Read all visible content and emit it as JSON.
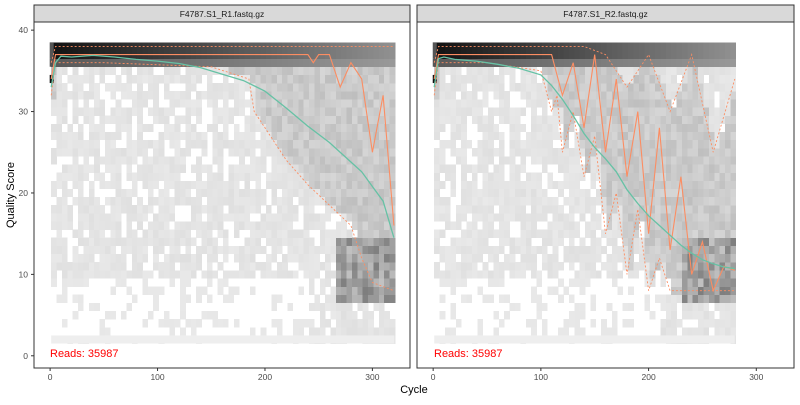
{
  "chart_data": {
    "type": "line",
    "title": "",
    "xlabel": "Cycle",
    "ylabel": "Quality Score",
    "xlim": [
      -15,
      335
    ],
    "ylim": [
      -1.5,
      41
    ],
    "xticks": [
      0,
      100,
      200,
      300
    ],
    "yticks": [
      0,
      10,
      20,
      30,
      40
    ],
    "grid": false,
    "legend": "none",
    "colors": {
      "strip_bg": "#d9d9d9",
      "panel_border": "#333333",
      "mean": "#66c2a5",
      "median": "#fc8d62",
      "quartiles": "#fc8d62",
      "reads_text": "#ff0000",
      "heat_low": "#f2f2f2",
      "heat_high": "#000000"
    },
    "panels": [
      {
        "strip_label": "F4787.S1_R1.fastq.gz",
        "reads_label": "Reads:  35987",
        "max_cycle": 320,
        "mean": {
          "x": [
            1,
            5,
            10,
            20,
            40,
            60,
            80,
            100,
            120,
            140,
            160,
            180,
            200,
            220,
            240,
            260,
            280,
            290,
            300,
            310,
            320
          ],
          "y": [
            33,
            36,
            36.8,
            36.7,
            36.9,
            36.7,
            36.4,
            36.2,
            35.9,
            35.4,
            34.6,
            33.8,
            32.5,
            30.4,
            28.2,
            26.2,
            23.8,
            22.6,
            20.8,
            19,
            14.5
          ]
        },
        "median": {
          "x": [
            1,
            5,
            10,
            50,
            100,
            200,
            240,
            245,
            250,
            260,
            270,
            280,
            290,
            300,
            310,
            320
          ],
          "y": [
            34,
            37,
            37,
            37,
            37,
            37,
            37,
            36,
            37,
            37,
            33,
            36,
            34,
            25,
            32,
            16
          ]
        },
        "q25": {
          "x": [
            1,
            5,
            50,
            150,
            185,
            190,
            200,
            210,
            220,
            240,
            260,
            280,
            290,
            300,
            310,
            320
          ],
          "y": [
            32,
            36,
            36,
            35.5,
            34,
            30,
            28,
            26,
            24,
            21,
            18.5,
            16,
            12,
            9,
            8.5,
            8
          ]
        },
        "q75": {
          "x": [
            1,
            5,
            100,
            300,
            320
          ],
          "y": [
            36,
            38,
            38,
            38,
            38
          ]
        }
      },
      {
        "strip_label": "F4787.S1_R2.fastq.gz",
        "reads_label": "Reads:  35987",
        "max_cycle": 280,
        "mean": {
          "x": [
            1,
            5,
            10,
            20,
            40,
            60,
            80,
            100,
            110,
            120,
            130,
            140,
            150,
            160,
            170,
            180,
            190,
            200,
            210,
            220,
            230,
            240,
            250,
            260,
            270,
            280
          ],
          "y": [
            33,
            36.5,
            36.7,
            36.4,
            36.2,
            35.8,
            35.3,
            34.5,
            33.2,
            31.5,
            29.5,
            27.3,
            25.6,
            24.2,
            22.6,
            20.4,
            18.7,
            17.2,
            16,
            14.8,
            13.6,
            12.6,
            11.8,
            11.3,
            10.9,
            10.7
          ]
        },
        "median": {
          "x": [
            1,
            5,
            50,
            100,
            110,
            120,
            130,
            140,
            150,
            160,
            170,
            180,
            190,
            200,
            210,
            220,
            230,
            240,
            250,
            260,
            270,
            280
          ],
          "y": [
            34,
            37,
            37,
            37,
            37,
            32,
            36,
            28,
            37,
            25,
            34,
            22,
            30,
            15,
            28,
            13,
            22,
            10,
            14,
            8,
            11,
            10.5
          ]
        },
        "q25": {
          "x": [
            1,
            5,
            50,
            100,
            110,
            115,
            120,
            130,
            140,
            150,
            160,
            170,
            180,
            190,
            200,
            210,
            220,
            230,
            240,
            250,
            260,
            270,
            280
          ],
          "y": [
            32,
            36,
            36,
            35,
            30,
            32,
            25,
            30,
            22,
            27,
            15,
            20,
            10,
            18,
            8,
            12,
            8,
            8,
            8,
            8,
            8,
            8,
            8
          ]
        },
        "q75": {
          "x": [
            1,
            5,
            100,
            140,
            160,
            180,
            200,
            220,
            240,
            260,
            280
          ],
          "y": [
            36,
            38,
            38,
            38,
            37,
            33,
            37,
            30,
            37,
            25,
            34
          ]
        }
      }
    ]
  }
}
